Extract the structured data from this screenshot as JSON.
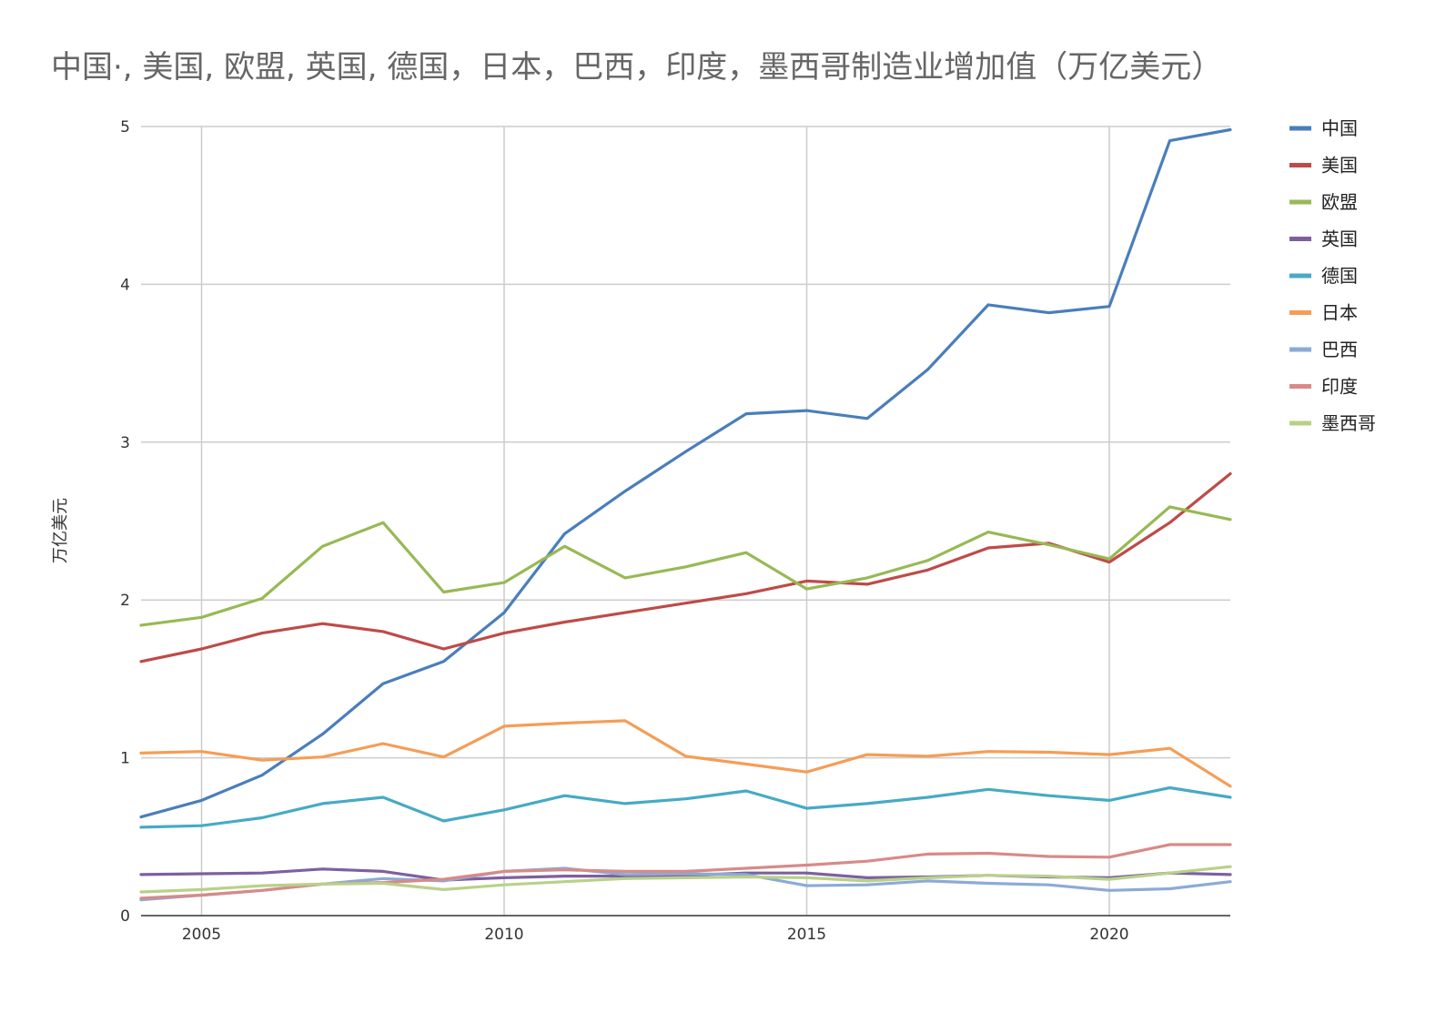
{
  "chart_data": {
    "type": "line",
    "title": "中国·, 美国, 欧盟, 英国, 德国，日本，巴西，印度，墨西哥制造业增加值（万亿美元）",
    "xlabel": "",
    "ylabel": "万亿美元",
    "xlim": [
      2004,
      2022
    ],
    "ylim": [
      0,
      5
    ],
    "x_ticks": [
      2005,
      2010,
      2015,
      2020
    ],
    "y_ticks": [
      0,
      1,
      2,
      3,
      4,
      5
    ],
    "grid": true,
    "legend_position": "right",
    "x": [
      2004,
      2005,
      2006,
      2007,
      2008,
      2009,
      2010,
      2011,
      2012,
      2013,
      2014,
      2015,
      2016,
      2017,
      2018,
      2019,
      2020,
      2021,
      2022
    ],
    "series": [
      {
        "name": "中国",
        "color": "#4a7ebb",
        "values": [
          0.625,
          0.73,
          0.89,
          1.15,
          1.47,
          1.61,
          1.92,
          2.42,
          2.69,
          2.94,
          3.18,
          3.2,
          3.15,
          3.46,
          3.87,
          3.82,
          3.86,
          4.91,
          4.98
        ]
      },
      {
        "name": "美国",
        "color": "#be4b48",
        "values": [
          1.61,
          1.69,
          1.79,
          1.85,
          1.8,
          1.69,
          1.79,
          1.86,
          1.92,
          1.98,
          2.04,
          2.12,
          2.1,
          2.19,
          2.33,
          2.36,
          2.24,
          2.49,
          2.8
        ]
      },
      {
        "name": "欧盟",
        "color": "#98b954",
        "values": [
          1.84,
          1.89,
          2.01,
          2.34,
          2.49,
          2.05,
          2.11,
          2.34,
          2.14,
          2.21,
          2.3,
          2.07,
          2.14,
          2.25,
          2.43,
          2.35,
          2.26,
          2.59,
          2.51
        ]
      },
      {
        "name": "英国",
        "color": "#7d60a0",
        "values": [
          0.26,
          0.265,
          0.27,
          0.295,
          0.28,
          0.225,
          0.24,
          0.25,
          0.25,
          0.255,
          0.27,
          0.27,
          0.24,
          0.245,
          0.255,
          0.245,
          0.24,
          0.27,
          0.26
        ]
      },
      {
        "name": "德国",
        "color": "#46aac5",
        "values": [
          0.56,
          0.57,
          0.62,
          0.71,
          0.75,
          0.6,
          0.67,
          0.76,
          0.71,
          0.74,
          0.79,
          0.68,
          0.71,
          0.75,
          0.8,
          0.76,
          0.73,
          0.81,
          0.75
        ]
      },
      {
        "name": "日本",
        "color": "#f59d56",
        "values": [
          1.03,
          1.04,
          0.985,
          1.005,
          1.09,
          1.005,
          1.2,
          1.22,
          1.235,
          1.01,
          0.96,
          0.91,
          1.02,
          1.01,
          1.04,
          1.035,
          1.02,
          1.06,
          0.82
        ]
      },
      {
        "name": "巴西",
        "color": "#8caad6",
        "values": [
          0.1,
          0.13,
          0.16,
          0.2,
          0.235,
          0.22,
          0.28,
          0.3,
          0.26,
          0.265,
          0.26,
          0.19,
          0.195,
          0.22,
          0.205,
          0.195,
          0.16,
          0.17,
          0.215
        ]
      },
      {
        "name": "印度",
        "color": "#d88a88",
        "values": [
          0.11,
          0.13,
          0.16,
          0.2,
          0.21,
          0.23,
          0.28,
          0.29,
          0.28,
          0.28,
          0.3,
          0.32,
          0.345,
          0.39,
          0.395,
          0.375,
          0.37,
          0.45,
          0.45
        ]
      },
      {
        "name": "墨西哥",
        "color": "#b8d189",
        "values": [
          0.15,
          0.165,
          0.19,
          0.2,
          0.205,
          0.165,
          0.195,
          0.215,
          0.235,
          0.24,
          0.245,
          0.24,
          0.22,
          0.24,
          0.255,
          0.25,
          0.23,
          0.27,
          0.31
        ]
      }
    ]
  }
}
